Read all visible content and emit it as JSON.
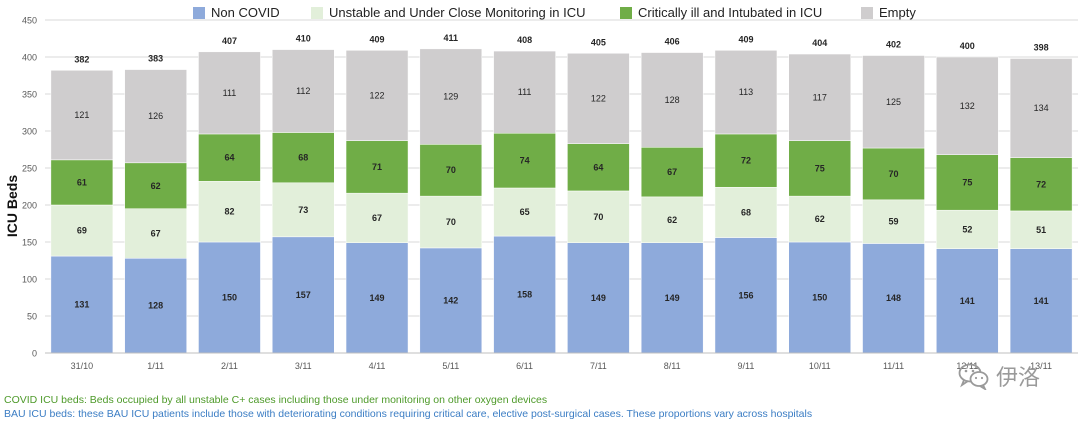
{
  "chart_data": {
    "type": "bar",
    "stacked": true,
    "title": "",
    "xlabel": "",
    "ylabel": "ICU Beds",
    "ylim": [
      0,
      450
    ],
    "yticks": [
      0,
      50,
      100,
      150,
      200,
      250,
      300,
      350,
      400,
      450
    ],
    "categories": [
      "31/10",
      "1/11",
      "2/11",
      "3/11",
      "4/11",
      "5/11",
      "6/11",
      "7/11",
      "8/11",
      "9/11",
      "10/11",
      "11/11",
      "12/11",
      "13/11"
    ],
    "totals": [
      382,
      383,
      407,
      410,
      409,
      411,
      408,
      405,
      406,
      409,
      404,
      402,
      400,
      398
    ],
    "series": [
      {
        "name": "Non COVID",
        "color": "#8eaadb",
        "values": [
          131,
          128,
          150,
          157,
          149,
          142,
          158,
          149,
          149,
          156,
          150,
          148,
          141,
          141
        ]
      },
      {
        "name": "Unstable and Under Close Monitoring in ICU",
        "color": "#e2efda",
        "values": [
          69,
          67,
          82,
          73,
          67,
          70,
          65,
          70,
          62,
          68,
          62,
          59,
          52,
          51
        ]
      },
      {
        "name": "Critically ill and Intubated in ICU",
        "color": "#70ad47",
        "values": [
          61,
          62,
          64,
          68,
          71,
          70,
          74,
          64,
          67,
          72,
          75,
          70,
          75,
          72
        ]
      },
      {
        "name": "Empty",
        "color": "#cfcdce",
        "values": [
          121,
          126,
          111,
          112,
          122,
          129,
          111,
          122,
          128,
          113,
          117,
          125,
          132,
          134
        ]
      }
    ],
    "legend_position": "top"
  },
  "notes": {
    "covid": "COVID ICU beds: Beds occupied by all unstable C+ cases including those under monitoring on other oxygen devices",
    "bau": "BAU ICU beds: these BAU ICU patients include those with deteriorating conditions requiring critical care, elective post-surgical cases. These proportions vary across hospitals"
  },
  "watermark": {
    "text": "伊洛",
    "icon": "wechat-icon"
  }
}
